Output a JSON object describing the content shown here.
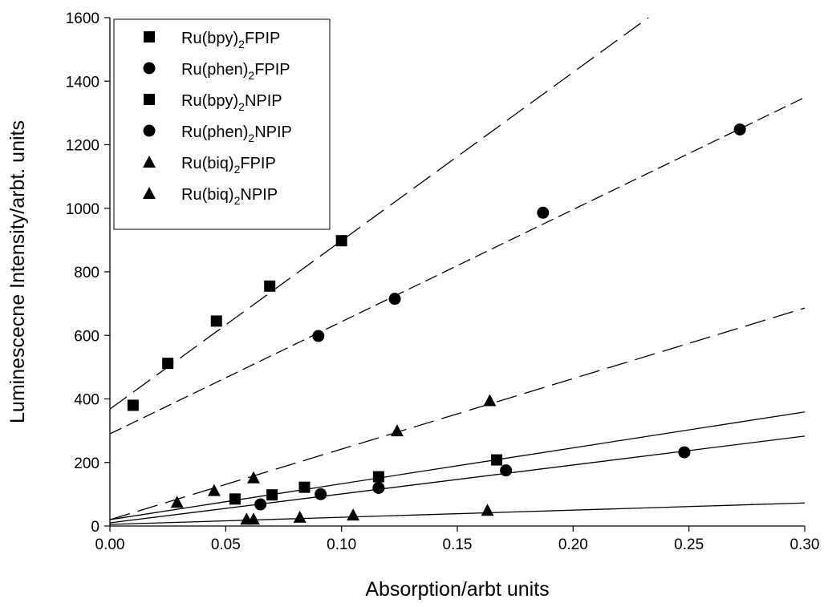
{
  "chart_data": {
    "type": "scatter",
    "xlabel": "Absorption/arbt units",
    "ylabel": "Luminescecne Intensity/arbt. units",
    "xlim": [
      0.0,
      0.3
    ],
    "ylim": [
      0,
      1600
    ],
    "x_ticks": [
      "0.00",
      "0.05",
      "0.10",
      "0.15",
      "0.20",
      "0.25",
      "0.30"
    ],
    "y_ticks": [
      "0",
      "200",
      "400",
      "600",
      "800",
      "1000",
      "1200",
      "1400",
      "1600"
    ],
    "grid": false,
    "legend_position": "top-left",
    "series": [
      {
        "name": "Ru(bpy)2FPIP",
        "label_parts": [
          "Ru(bpy)",
          "2",
          "FPIP"
        ],
        "marker": "square",
        "line_style": "long-dash",
        "x": [
          0.01,
          0.025,
          0.046,
          0.069,
          0.1
        ],
        "y": [
          380,
          512,
          645,
          755,
          898
        ],
        "fit": {
          "intercept": 368,
          "slope": 5300
        }
      },
      {
        "name": "Ru(phen)2FPIP",
        "label_parts": [
          "Ru(phen)",
          "2",
          "FPIP"
        ],
        "marker": "circle",
        "line_style": "medium-dash",
        "x": [
          0.09,
          0.123,
          0.187,
          0.272
        ],
        "y": [
          598,
          715,
          986,
          1248
        ],
        "fit": {
          "intercept": 290,
          "slope": 3530
        }
      },
      {
        "name": "Ru(bpy)2NPIP",
        "label_parts": [
          "Ru(bpy)",
          "2",
          "NPIP"
        ],
        "marker": "square",
        "line_style": "solid",
        "x": [
          0.054,
          0.07,
          0.084,
          0.116,
          0.167
        ],
        "y": [
          85,
          98,
          122,
          155,
          208
        ],
        "fit": {
          "intercept": 20,
          "slope": 1130
        }
      },
      {
        "name": "Ru(phen)2NPIP",
        "label_parts": [
          "Ru(phen)",
          "2",
          "NPIP"
        ],
        "marker": "circle",
        "line_style": "solid",
        "x": [
          0.065,
          0.091,
          0.116,
          0.171,
          0.248
        ],
        "y": [
          68,
          100,
          120,
          175,
          232
        ],
        "fit": {
          "intercept": 10,
          "slope": 910
        }
      },
      {
        "name": "Ru(biq)2FPIP",
        "label_parts": [
          "Ru(biq)",
          "2",
          "FPIP"
        ],
        "marker": "triangle",
        "line_style": "long-dash",
        "x": [
          0.029,
          0.045,
          0.062,
          0.124,
          0.164
        ],
        "y": [
          75,
          112,
          152,
          300,
          395
        ],
        "fit": {
          "intercept": 20,
          "slope": 2220
        }
      },
      {
        "name": "Ru(biq)2NPIP",
        "label_parts": [
          "Ru(biq)",
          "2",
          "NPIP"
        ],
        "marker": "triangle",
        "line_style": "solid",
        "x": [
          0.059,
          0.062,
          0.082,
          0.105,
          0.163
        ],
        "y": [
          22,
          22,
          28,
          35,
          50
        ],
        "fit": {
          "intercept": 5,
          "slope": 225
        }
      }
    ]
  }
}
